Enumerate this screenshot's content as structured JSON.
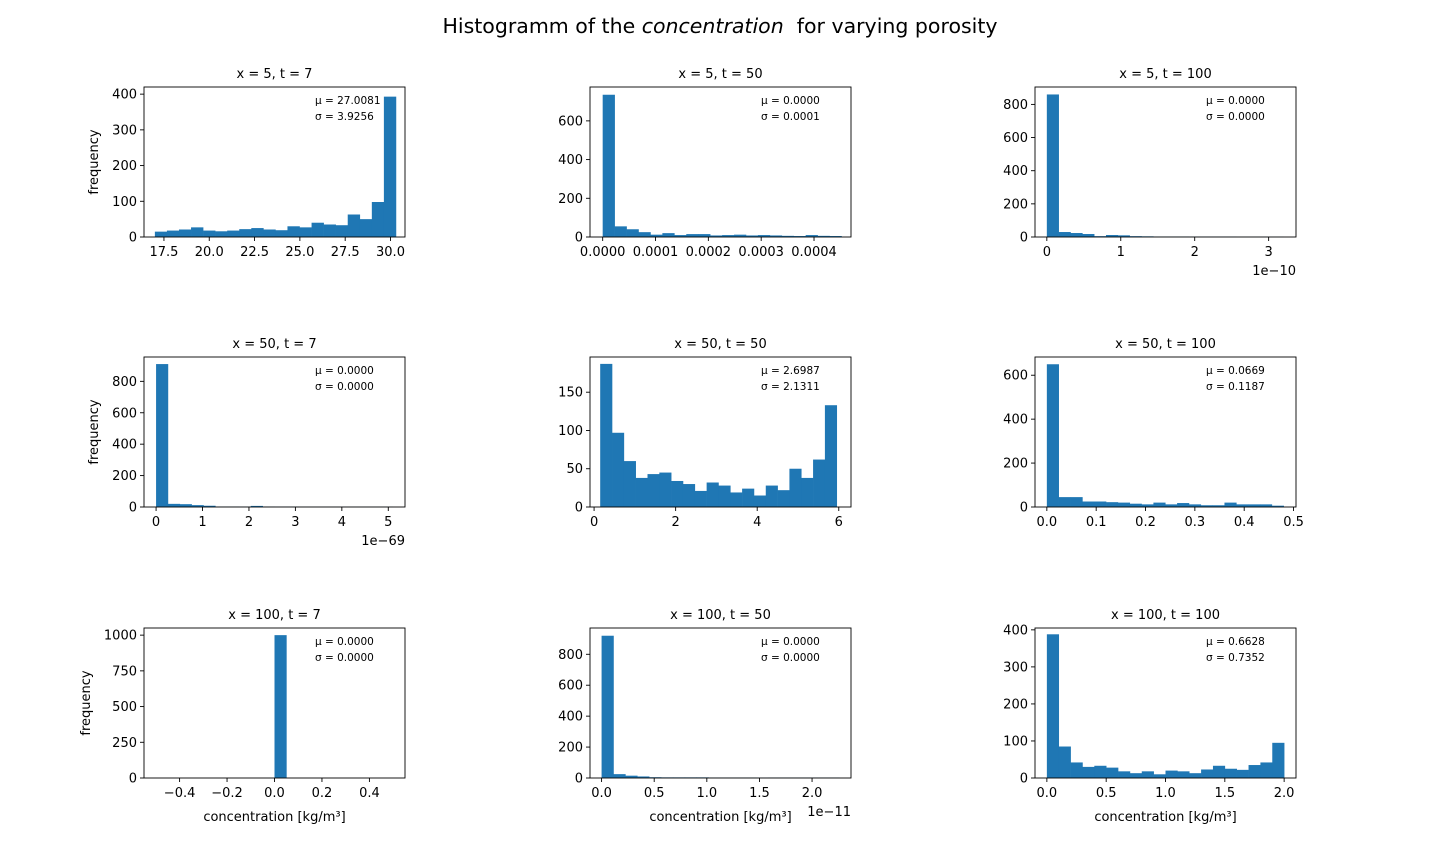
{
  "figure": {
    "title_prefix": "Histogramm of the ",
    "title_emph": "concentration",
    "title_suffix": "  for varying porosity"
  },
  "colors": {
    "bar": "#1f77b4"
  },
  "chart_data": [
    {
      "type": "bar",
      "title": "x = 5, t = 7",
      "ylabel": "frequency",
      "xlabel": "",
      "xlim": [
        16.4,
        30.8
      ],
      "ylim": [
        0,
        420
      ],
      "xticks": [
        17.5,
        20.0,
        22.5,
        25.0,
        27.5,
        30.0
      ],
      "xticklabels": [
        "17.5",
        "20.0",
        "22.5",
        "25.0",
        "27.5",
        "30.0"
      ],
      "yticks": [
        0,
        100,
        200,
        300,
        400
      ],
      "yticklabels": [
        "0",
        "100",
        "200",
        "300",
        "400"
      ],
      "offset_label": "",
      "bin_range": [
        17.0,
        30.3
      ],
      "counts": [
        15,
        18,
        21,
        27,
        18,
        16,
        18,
        22,
        25,
        21,
        19,
        30,
        27,
        40,
        35,
        33,
        63,
        50,
        98,
        393
      ],
      "mu": "$\\mu = 27.0081$",
      "sigma": "$\\sigma = 3.9256$",
      "mu_text": "μ = 27.0081",
      "sigma_text": "σ = 3.9256"
    },
    {
      "type": "bar",
      "title": "x = 5, t = 50",
      "ylabel": "",
      "xlabel": "",
      "xlim": [
        -2.4e-05,
        0.00047
      ],
      "ylim": [
        0,
        775
      ],
      "xticks": [
        0.0,
        0.0001,
        0.0002,
        0.0003,
        0.0004
      ],
      "xticklabels": [
        "0.0000",
        "0.0001",
        "0.0002",
        "0.0003",
        "0.0004"
      ],
      "yticks": [
        0,
        200,
        400,
        600
      ],
      "yticklabels": [
        "0",
        "200",
        "400",
        "600"
      ],
      "offset_label": "",
      "bin_range": [
        0.0,
        0.000452
      ],
      "counts": [
        735,
        55,
        40,
        25,
        12,
        20,
        10,
        15,
        15,
        8,
        10,
        12,
        8,
        10,
        8,
        6,
        5,
        10,
        6,
        5
      ],
      "mu_text": "μ = 0.0000",
      "sigma_text": "σ = 0.0001"
    },
    {
      "type": "bar",
      "title": "x = 5, t = 100",
      "ylabel": "",
      "xlabel": "",
      "xlim": [
        -0.16,
        3.37
      ],
      "ylim": [
        0,
        905
      ],
      "xticks": [
        0,
        1,
        2,
        3
      ],
      "xticklabels": [
        "0",
        "1",
        "2",
        "3"
      ],
      "yticks": [
        0,
        200,
        400,
        600,
        800
      ],
      "yticklabels": [
        "0",
        "200",
        "400",
        "600",
        "800"
      ],
      "offset_label": "1e−10",
      "bin_range": [
        0.0,
        3.2
      ],
      "counts": [
        860,
        30,
        24,
        18,
        5,
        12,
        10,
        5,
        4,
        3,
        3,
        3,
        2,
        2,
        2,
        2,
        1,
        1,
        1,
        1
      ],
      "mu_text": "μ = 0.0000",
      "sigma_text": "σ = 0.0000"
    },
    {
      "type": "bar",
      "title": "x = 50, t = 7",
      "ylabel": "frequency",
      "xlabel": "",
      "xlim": [
        -0.26,
        5.36
      ],
      "ylim": [
        0,
        955
      ],
      "xticks": [
        0,
        1,
        2,
        3,
        4,
        5
      ],
      "xticklabels": [
        "0",
        "1",
        "2",
        "3",
        "4",
        "5"
      ],
      "yticks": [
        0,
        200,
        400,
        600,
        800
      ],
      "yticklabels": [
        "0",
        "200",
        "400",
        "600",
        "800"
      ],
      "offset_label": "1e−69",
      "bin_range": [
        0.0,
        5.1
      ],
      "counts": [
        910,
        20,
        18,
        12,
        8,
        3,
        3,
        2,
        7,
        3,
        2,
        2,
        1,
        1,
        1,
        1,
        1,
        1,
        1,
        1
      ],
      "mu_text": "μ = 0.0000",
      "sigma_text": "σ = 0.0000"
    },
    {
      "type": "bar",
      "title": "x = 50, t = 50",
      "ylabel": "",
      "xlabel": "",
      "xlim": [
        -0.1,
        6.3
      ],
      "ylim": [
        0,
        196
      ],
      "xticks": [
        0,
        2,
        4,
        6
      ],
      "xticklabels": [
        "0",
        "2",
        "4",
        "6"
      ],
      "yticks": [
        0,
        50,
        100,
        150
      ],
      "yticklabels": [
        "0",
        "50",
        "100",
        "150"
      ],
      "offset_label": "",
      "bin_range": [
        0.15,
        5.95
      ],
      "counts": [
        187,
        97,
        60,
        38,
        43,
        45,
        34,
        30,
        21,
        32,
        28,
        19,
        24,
        15,
        28,
        22,
        50,
        38,
        62,
        133
      ],
      "mu_text": "μ = 2.6987",
      "sigma_text": "σ = 2.1311"
    },
    {
      "type": "bar",
      "title": "x = 50, t = 100",
      "ylabel": "",
      "xlabel": "",
      "xlim": [
        -0.024,
        0.505
      ],
      "ylim": [
        0,
        683
      ],
      "xticks": [
        0.0,
        0.1,
        0.2,
        0.3,
        0.4,
        0.5
      ],
      "xticklabels": [
        "0.0",
        "0.1",
        "0.2",
        "0.3",
        "0.4",
        "0.5"
      ],
      "yticks": [
        0,
        200,
        400,
        600
      ],
      "yticklabels": [
        "0",
        "200",
        "400",
        "600"
      ],
      "offset_label": "",
      "bin_range": [
        0.0,
        0.48
      ],
      "counts": [
        650,
        45,
        45,
        25,
        25,
        22,
        20,
        15,
        12,
        20,
        12,
        18,
        12,
        8,
        8,
        20,
        12,
        12,
        12,
        6
      ],
      "mu_text": "μ = 0.0669",
      "sigma_text": "σ = 0.1187"
    },
    {
      "type": "bar",
      "title": "x = 100, t = 7",
      "ylabel": "frequency",
      "xlabel": "concentration [kg/m³]",
      "xlim": [
        -0.55,
        0.55
      ],
      "ylim": [
        0,
        1050
      ],
      "xticks": [
        -0.4,
        -0.2,
        0.0,
        0.2,
        0.4
      ],
      "xticklabels": [
        "−0.4",
        "−0.2",
        "0.0",
        "0.2",
        "0.4"
      ],
      "yticks": [
        0,
        250,
        500,
        750,
        1000
      ],
      "yticklabels": [
        "0",
        "250",
        "500",
        "750",
        "1000"
      ],
      "offset_label": "",
      "bin_range": [
        -0.5,
        0.5
      ],
      "counts": [
        0,
        0,
        0,
        0,
        0,
        0,
        0,
        0,
        0,
        0,
        1000,
        0,
        0,
        0,
        0,
        0,
        0,
        0,
        0,
        0
      ],
      "mu_text": "μ = 0.0000",
      "sigma_text": "σ = 0.0000"
    },
    {
      "type": "bar",
      "title": "x = 100, t = 50",
      "ylabel": "",
      "xlabel": "concentration [kg/m³]",
      "xlim": [
        -0.11,
        2.37
      ],
      "ylim": [
        0,
        970
      ],
      "xticks": [
        0.0,
        0.5,
        1.0,
        1.5,
        2.0
      ],
      "xticklabels": [
        "0.0",
        "0.5",
        "1.0",
        "1.5",
        "2.0"
      ],
      "yticks": [
        0,
        200,
        400,
        600,
        800
      ],
      "yticklabels": [
        "0",
        "200",
        "400",
        "600",
        "800"
      ],
      "offset_label": "1e−11",
      "bin_range": [
        0.0,
        2.26
      ],
      "counts": [
        920,
        25,
        15,
        10,
        5,
        4,
        4,
        4,
        4,
        3,
        3,
        3,
        3,
        2,
        3,
        3,
        3,
        3,
        3,
        3
      ],
      "mu_text": "μ = 0.0000",
      "sigma_text": "σ = 0.0000"
    },
    {
      "type": "bar",
      "title": "x = 100, t = 100",
      "ylabel": "",
      "xlabel": "concentration [kg/m³]",
      "xlim": [
        -0.1,
        2.1
      ],
      "ylim": [
        0,
        405
      ],
      "xticks": [
        0.0,
        0.5,
        1.0,
        1.5,
        2.0
      ],
      "xticklabels": [
        "0.0",
        "0.5",
        "1.0",
        "1.5",
        "2.0"
      ],
      "yticks": [
        0,
        100,
        200,
        300,
        400
      ],
      "yticklabels": [
        "0",
        "100",
        "200",
        "300",
        "400"
      ],
      "offset_label": "",
      "bin_range": [
        0.0,
        2.0
      ],
      "counts": [
        388,
        85,
        42,
        30,
        33,
        28,
        18,
        13,
        18,
        10,
        20,
        18,
        13,
        23,
        33,
        25,
        22,
        35,
        42,
        95
      ],
      "mu_text": "μ = 0.6628",
      "sigma_text": "σ = 0.7352"
    }
  ]
}
